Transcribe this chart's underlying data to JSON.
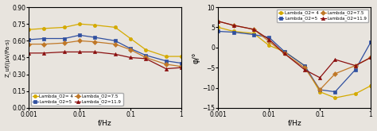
{
  "freq": [
    0.001,
    0.002,
    0.005,
    0.01,
    0.02,
    0.05,
    0.1,
    0.2,
    0.5,
    1.0
  ],
  "mag_L4": [
    0.7,
    0.71,
    0.72,
    0.75,
    0.74,
    0.72,
    0.62,
    0.52,
    0.46,
    0.46
  ],
  "mag_L5": [
    0.61,
    0.62,
    0.62,
    0.65,
    0.63,
    0.6,
    0.53,
    0.47,
    0.42,
    0.4
  ],
  "mag_L7p5": [
    0.57,
    0.57,
    0.58,
    0.6,
    0.59,
    0.57,
    0.52,
    0.45,
    0.39,
    0.37
  ],
  "mag_L11p9": [
    0.49,
    0.49,
    0.5,
    0.5,
    0.5,
    0.48,
    0.45,
    0.44,
    0.35,
    0.36
  ],
  "phase_L4": [
    5.0,
    4.0,
    3.5,
    0.5,
    -1.0,
    -4.5,
    -11.0,
    -12.5,
    -11.5,
    -9.5
  ],
  "phase_L5": [
    4.0,
    3.8,
    3.2,
    2.5,
    -1.0,
    -4.5,
    -10.5,
    -11.0,
    -5.5,
    1.3
  ],
  "phase_L7p5": [
    6.5,
    5.5,
    4.5,
    1.5,
    -1.5,
    -5.0,
    -10.5,
    -6.5,
    -4.5,
    -2.5
  ],
  "phase_L11p9": [
    6.5,
    5.5,
    4.5,
    2.0,
    -1.5,
    -5.5,
    -7.5,
    -3.0,
    -4.5,
    -2.5
  ],
  "colors_L4": "#d4aa00",
  "colors_L5": "#3050a0",
  "colors_L7p5": "#c07828",
  "colors_L11p9": "#8b1010",
  "marker_L4": "o",
  "marker_L5": "s",
  "marker_L7p5": "D",
  "marker_L11p9": "^",
  "label_L4": "Lambda_O2= 4",
  "label_L5": "Lambda_O2=5",
  "label_L7p5": "Lambda_O2=7.5",
  "label_L11p9": "Lambda_O2=11.9",
  "ylabel_left": "Z_uf/(µV/Pa·s)",
  "ylabel_right": "φ/°",
  "xlabel": "f/Hz",
  "ylim_left": [
    0,
    0.9
  ],
  "ylim_right": [
    -15,
    10
  ],
  "yticks_left": [
    0,
    0.15,
    0.3,
    0.45,
    0.6,
    0.75,
    0.9
  ],
  "yticks_right": [
    -15,
    -10,
    -5,
    0,
    5,
    10
  ],
  "bg_color": "#e8e4de"
}
